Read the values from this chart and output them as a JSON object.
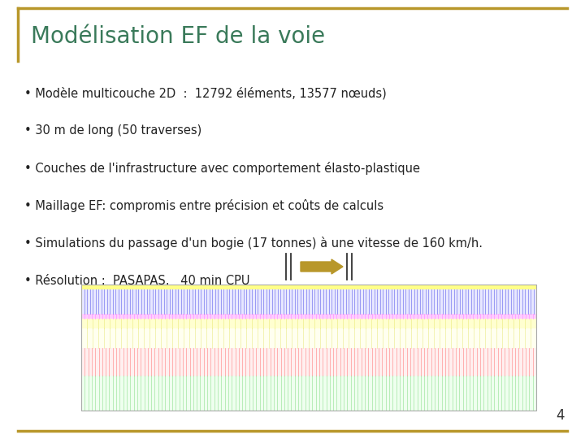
{
  "title": "Modélisation EF de la voie",
  "title_color": "#3a7a5a",
  "title_fontsize": 20,
  "border_color": "#b8972a",
  "background_color": "#ffffff",
  "bullet_points": [
    "• Modèle multicouche 2D  :  12792 éléments, 13577 nœuds)",
    "• 30 m de long (50 traverses)",
    "• Couches de l'infrastructure avec comportement élasto-plastique",
    "• Maillage EF: compromis entre précision et coûts de calculs",
    "• Simulations du passage d'un bogie (17 tonnes) à une vitesse de 160 km/h.",
    "• Résolution :  PASAPAS,   40 min CPU"
  ],
  "bullet_fontsize": 10.5,
  "bullet_color": "#222222",
  "page_number": "4",
  "arrow_color": "#b8972a",
  "vertical_bar_color": "#333333",
  "mesh_layer_specs": [
    {
      "yb": 0.0,
      "yh": 0.28,
      "bg": "#efffef",
      "lc": "#88dd88",
      "alpha": 0.75,
      "n": 130
    },
    {
      "yb": 0.28,
      "yh": 0.22,
      "bg": "#fff0f0",
      "lc": "#ff7777",
      "alpha": 0.75,
      "n": 130
    },
    {
      "yb": 0.5,
      "yh": 0.15,
      "bg": "#fffff0",
      "lc": "#dddd44",
      "alpha": 0.5,
      "n": 80
    },
    {
      "yb": 0.65,
      "yh": 0.08,
      "bg": "#ffffd0",
      "lc": "#dddd44",
      "alpha": 0.5,
      "n": 80
    },
    {
      "yb": 0.73,
      "yh": 0.04,
      "bg": "#ffccff",
      "lc": "#ff88ff",
      "alpha": 0.8,
      "n": 130
    },
    {
      "yb": 0.77,
      "yh": 0.23,
      "bg": "#e8e8ff",
      "lc": "#6666ee",
      "alpha": 0.85,
      "n": 160
    }
  ]
}
